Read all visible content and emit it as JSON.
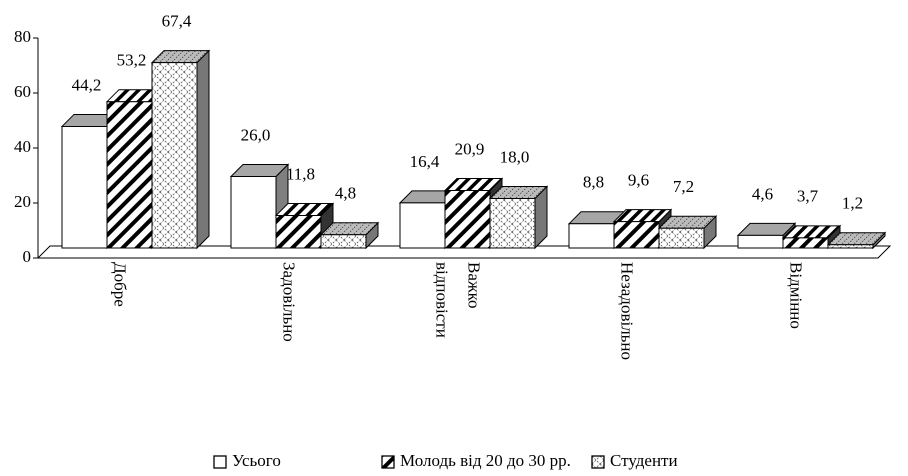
{
  "chart_data": {
    "type": "bar3d",
    "categories": [
      "Добре",
      "Задовільно",
      "Важко відповісти",
      "Незадовільно",
      "Відмінно"
    ],
    "series": [
      {
        "name": "Усього",
        "color": "#ffffff",
        "pattern": "solid",
        "values": [
          44.2,
          26.0,
          16.4,
          8.8,
          4.6
        ],
        "value_labels": [
          "44,2",
          "26,0",
          "16,4",
          "8,8",
          "4,6"
        ]
      },
      {
        "name": "Молодь від 20 до 30 рр.",
        "color": "#000000",
        "pattern": "diagonal",
        "values": [
          53.2,
          11.8,
          20.9,
          9.6,
          3.7
        ],
        "value_labels": [
          "53,2",
          "11,8",
          "20,9",
          "9,6",
          "3,7"
        ]
      },
      {
        "name": "Студенти",
        "color": "#808080",
        "pattern": "crosshatch",
        "values": [
          67.4,
          4.8,
          18.0,
          7.2,
          1.2
        ],
        "value_labels": [
          "67,4",
          "4,8",
          "18,0",
          "7,2",
          "1,2"
        ]
      }
    ],
    "ylim": [
      0,
      80
    ],
    "yticks": [
      0,
      20,
      40,
      60,
      80
    ],
    "legend": "bottom"
  }
}
